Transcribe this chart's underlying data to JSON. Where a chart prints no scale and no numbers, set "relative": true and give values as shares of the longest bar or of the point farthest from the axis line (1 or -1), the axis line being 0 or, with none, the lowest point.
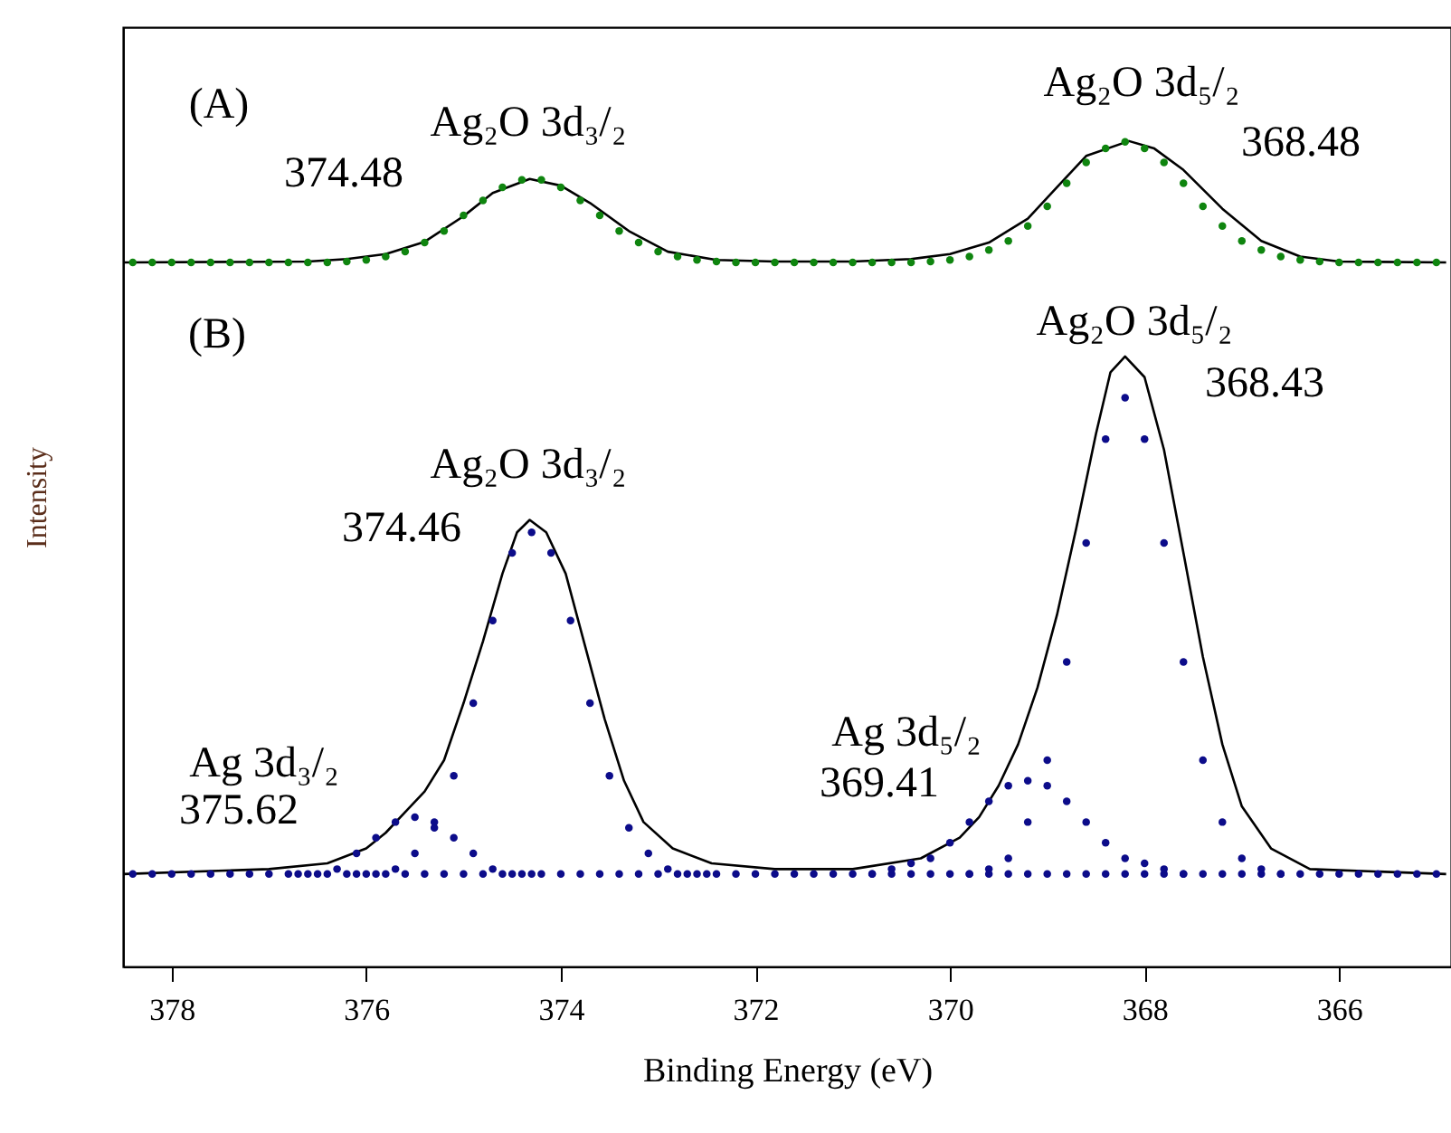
{
  "chart_data": {
    "type": "scatter",
    "relative": true,
    "xlabel": "Binding Energy (eV)",
    "ylabel": "Intensity",
    "xlim": [
      378.5,
      364.85
    ],
    "xticks": [
      378,
      376,
      374,
      372,
      370,
      368,
      366
    ],
    "grid": false,
    "marker": "circle",
    "annotations": [
      "(A)",
      "Ag₂O 3d₃/₂",
      "374.48",
      "Ag₂O 3d₅/₂",
      "368.48",
      "(B)",
      "Ag₂O 3d₅/₂",
      "368.43",
      "Ag₂O 3d₃/₂",
      "374.46",
      "Ag 3d₅/₂",
      "369.41",
      "Ag 3d₃/₂",
      "375.62"
    ],
    "series": [
      {
        "type": "line",
        "marker": "none",
        "line_style": "solid",
        "color": "#000000",
        "x": [
          378.5,
          376.6,
          376.2,
          375.8,
          375.4,
          375.0,
          374.7,
          374.32,
          374.0,
          373.7,
          373.3,
          372.9,
          372.4,
          371.8,
          371.0,
          370.4,
          370.0,
          369.6,
          369.2,
          368.9,
          368.6,
          368.16,
          367.9,
          367.6,
          367.2,
          366.8,
          366.4,
          366.0,
          364.9
        ],
        "values": [
          0.853,
          0.854,
          0.857,
          0.863,
          0.878,
          0.909,
          0.937,
          0.954,
          0.946,
          0.925,
          0.891,
          0.866,
          0.856,
          0.854,
          0.854,
          0.857,
          0.863,
          0.877,
          0.906,
          0.944,
          0.982,
          1.0,
          0.991,
          0.965,
          0.918,
          0.879,
          0.86,
          0.854,
          0.853
        ]
      },
      {
        "color": "#0f850f",
        "x": [
          378.4,
          378.2,
          378.0,
          377.8,
          377.6,
          377.4,
          377.2,
          377.0,
          376.8,
          376.6,
          376.4,
          376.2,
          376.0,
          375.8,
          375.6,
          375.4,
          375.2,
          375.0,
          374.8,
          374.6,
          374.4,
          374.2,
          374.0,
          373.8,
          373.6,
          373.4,
          373.2,
          373.0,
          372.8,
          372.6,
          372.4,
          372.2,
          372.0,
          371.8,
          371.6,
          371.4,
          371.2,
          371.0,
          370.8,
          370.6,
          370.4,
          370.2,
          370.0,
          369.8,
          369.6,
          369.4,
          369.2,
          369.0,
          368.8,
          368.6,
          368.4,
          368.2,
          368.0,
          367.8,
          367.6,
          367.4,
          367.2,
          367.0,
          366.8,
          366.6,
          366.4,
          366.2,
          366.0,
          365.8,
          365.6,
          365.4,
          365.2,
          365.0
        ],
        "values": [
          0.853,
          0.853,
          0.853,
          0.853,
          0.853,
          0.853,
          0.853,
          0.853,
          0.853,
          0.853,
          0.853,
          0.854,
          0.856,
          0.86,
          0.866,
          0.877,
          0.891,
          0.91,
          0.928,
          0.944,
          0.953,
          0.953,
          0.944,
          0.928,
          0.91,
          0.891,
          0.877,
          0.866,
          0.86,
          0.856,
          0.854,
          0.853,
          0.853,
          0.853,
          0.853,
          0.853,
          0.853,
          0.853,
          0.853,
          0.853,
          0.853,
          0.854,
          0.856,
          0.86,
          0.868,
          0.879,
          0.897,
          0.921,
          0.949,
          0.974,
          0.991,
          0.999,
          0.991,
          0.974,
          0.949,
          0.921,
          0.897,
          0.879,
          0.868,
          0.86,
          0.856,
          0.854,
          0.853,
          0.853,
          0.853,
          0.853,
          0.853,
          0.853
        ]
      },
      {
        "type": "line",
        "marker": "none",
        "line_style": "solid",
        "color": "#000000",
        "x": [
          378.5,
          377.0,
          376.4,
          376.0,
          375.8,
          375.6,
          375.4,
          375.2,
          375.0,
          374.8,
          374.6,
          374.45,
          374.32,
          374.15,
          373.95,
          373.75,
          373.55,
          373.35,
          373.15,
          372.85,
          372.45,
          371.8,
          371.0,
          370.3,
          369.9,
          369.7,
          369.5,
          369.3,
          369.1,
          368.9,
          368.7,
          368.5,
          368.35,
          368.2,
          368.0,
          367.8,
          367.6,
          367.4,
          367.2,
          367.0,
          366.7,
          366.3,
          364.9
        ],
        "values": [
          0.112,
          0.118,
          0.125,
          0.143,
          0.162,
          0.187,
          0.212,
          0.25,
          0.319,
          0.394,
          0.476,
          0.526,
          0.541,
          0.526,
          0.476,
          0.388,
          0.3,
          0.225,
          0.175,
          0.143,
          0.125,
          0.118,
          0.118,
          0.131,
          0.156,
          0.181,
          0.219,
          0.269,
          0.338,
          0.426,
          0.532,
          0.645,
          0.72,
          0.739,
          0.714,
          0.626,
          0.501,
          0.375,
          0.269,
          0.194,
          0.143,
          0.118,
          0.112
        ]
      },
      {
        "color": "#0c0c8a",
        "x": [
          378.4,
          378.2,
          378.0,
          377.8,
          377.6,
          377.4,
          377.2,
          377.0,
          376.8,
          376.6,
          376.4,
          376.2,
          376.0,
          375.8,
          375.6,
          375.4,
          375.2,
          375.0,
          374.8,
          374.6,
          374.4,
          374.2,
          374.0,
          373.8,
          373.6,
          373.4,
          373.2,
          373.0,
          372.8,
          372.6,
          372.4,
          372.2,
          372.0,
          371.8,
          371.6,
          371.4,
          371.2,
          371.0,
          370.8,
          370.6,
          370.4,
          370.2,
          370.0,
          369.8,
          369.6,
          369.4,
          369.2,
          369.0,
          368.8,
          368.6,
          368.4,
          368.2,
          368.0,
          367.8,
          367.6,
          367.4,
          367.2,
          367.0,
          366.8,
          366.6,
          366.4,
          366.2,
          366.0,
          365.8,
          365.6,
          365.4,
          365.2,
          365.0
        ],
        "values": [
          0.112,
          0.112,
          0.112,
          0.112,
          0.112,
          0.112,
          0.112,
          0.112,
          0.112,
          0.112,
          0.112,
          0.112,
          0.112,
          0.112,
          0.112,
          0.112,
          0.112,
          0.112,
          0.112,
          0.112,
          0.112,
          0.112,
          0.112,
          0.112,
          0.112,
          0.112,
          0.112,
          0.112,
          0.112,
          0.112,
          0.112,
          0.112,
          0.112,
          0.112,
          0.112,
          0.112,
          0.112,
          0.112,
          0.112,
          0.112,
          0.112,
          0.112,
          0.112,
          0.112,
          0.112,
          0.112,
          0.112,
          0.112,
          0.112,
          0.112,
          0.112,
          0.112,
          0.112,
          0.112,
          0.112,
          0.112,
          0.112,
          0.112,
          0.112,
          0.112,
          0.112,
          0.112,
          0.112,
          0.112,
          0.112,
          0.112,
          0.112,
          0.112
        ]
      },
      {
        "color": "#0c0c8a",
        "x": [
          376.7,
          376.5,
          376.3,
          376.1,
          375.9,
          375.7,
          375.5,
          375.3,
          375.1,
          374.9,
          374.7,
          374.5,
          374.3
        ],
        "values": [
          0.112,
          0.112,
          0.118,
          0.137,
          0.156,
          0.175,
          0.181,
          0.175,
          0.156,
          0.137,
          0.118,
          0.112,
          0.112
        ]
      },
      {
        "color": "#0c0c8a",
        "x": [
          376.1,
          375.9,
          375.7,
          375.5,
          375.3,
          375.1,
          374.9,
          374.7,
          374.5,
          374.3,
          374.1,
          373.9,
          373.7,
          373.5,
          373.3,
          373.1,
          372.9,
          372.7,
          372.5
        ],
        "values": [
          0.112,
          0.112,
          0.118,
          0.137,
          0.168,
          0.231,
          0.319,
          0.419,
          0.501,
          0.526,
          0.501,
          0.419,
          0.319,
          0.231,
          0.168,
          0.137,
          0.118,
          0.112,
          0.112
        ]
      },
      {
        "color": "#0c0c8a",
        "x": [
          370.8,
          370.6,
          370.4,
          370.2,
          370.0,
          369.8,
          369.6,
          369.4,
          369.2,
          369.0,
          368.8,
          368.6,
          368.4,
          368.2,
          368.0,
          367.8,
          367.6
        ],
        "values": [
          0.112,
          0.118,
          0.125,
          0.131,
          0.15,
          0.175,
          0.2,
          0.219,
          0.225,
          0.219,
          0.2,
          0.175,
          0.15,
          0.131,
          0.125,
          0.118,
          0.112
        ]
      },
      {
        "color": "#0c0c8a",
        "x": [
          369.8,
          369.6,
          369.4,
          369.2,
          369.0,
          368.8,
          368.6,
          368.4,
          368.2,
          368.0,
          367.8,
          367.6,
          367.4,
          367.2,
          367.0,
          366.8,
          366.6
        ],
        "values": [
          0.112,
          0.118,
          0.131,
          0.175,
          0.25,
          0.369,
          0.513,
          0.639,
          0.689,
          0.639,
          0.513,
          0.369,
          0.25,
          0.175,
          0.131,
          0.118,
          0.112
        ]
      }
    ]
  }
}
